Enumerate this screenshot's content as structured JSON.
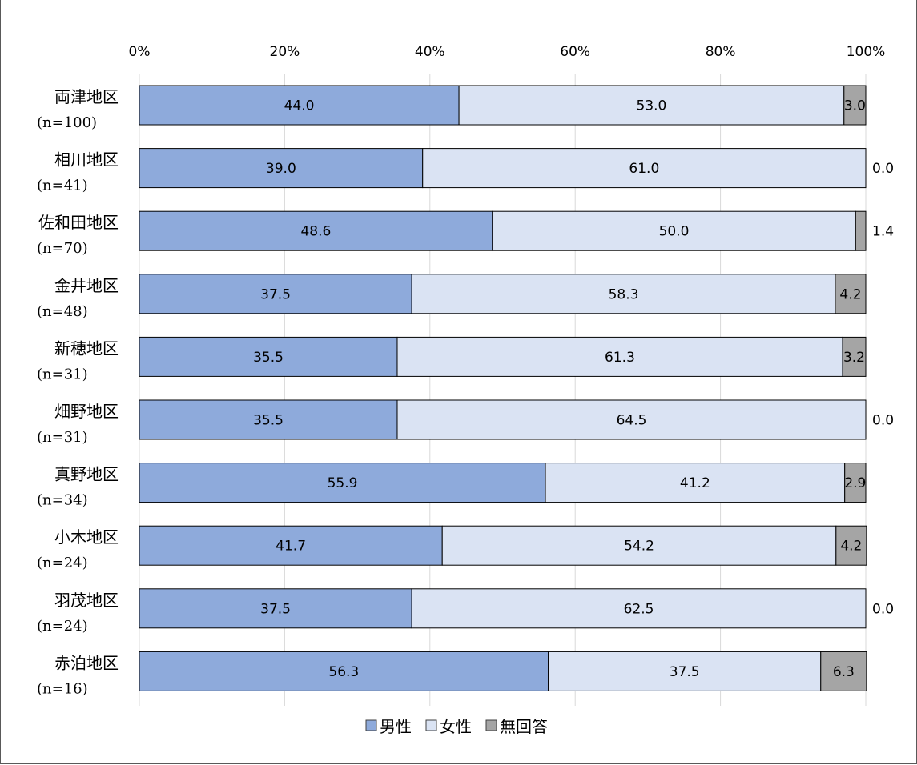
{
  "chart_data": {
    "type": "bar",
    "orientation": "horizontal",
    "stacked": "percent",
    "xaxis": {
      "range": [
        0,
        100
      ],
      "ticks": [
        "0%",
        "20%",
        "40%",
        "60%",
        "80%",
        "100%"
      ],
      "position": "top"
    },
    "grid": true,
    "categories": [
      {
        "name": "両津地区",
        "n": "(n=100)"
      },
      {
        "name": "相川地区",
        "n": "(n=41)"
      },
      {
        "name": "佐和田地区",
        "n": "(n=70)"
      },
      {
        "name": "金井地区",
        "n": "(n=48)"
      },
      {
        "name": "新穂地区",
        "n": "(n=31)"
      },
      {
        "name": "畑野地区",
        "n": "(n=31)"
      },
      {
        "name": "真野地区",
        "n": "(n=34)"
      },
      {
        "name": "小木地区",
        "n": "(n=24)"
      },
      {
        "name": "羽茂地区",
        "n": "(n=24)"
      },
      {
        "name": "赤泊地区",
        "n": "(n=16)"
      }
    ],
    "series": [
      {
        "name": "男性",
        "color": "#8eaadb",
        "values": [
          44.0,
          39.0,
          48.6,
          37.5,
          35.5,
          35.5,
          55.9,
          41.7,
          37.5,
          56.3
        ]
      },
      {
        "name": "女性",
        "color": "#dae3f3",
        "values": [
          53.0,
          61.0,
          50.0,
          58.3,
          61.3,
          64.5,
          41.2,
          54.2,
          62.5,
          37.5
        ]
      },
      {
        "name": "無回答",
        "color": "#a5a5a5",
        "values": [
          3.0,
          0.0,
          1.4,
          4.2,
          3.2,
          0.0,
          2.9,
          4.2,
          0.0,
          6.3
        ]
      }
    ],
    "legend": {
      "position": "bottom"
    }
  }
}
